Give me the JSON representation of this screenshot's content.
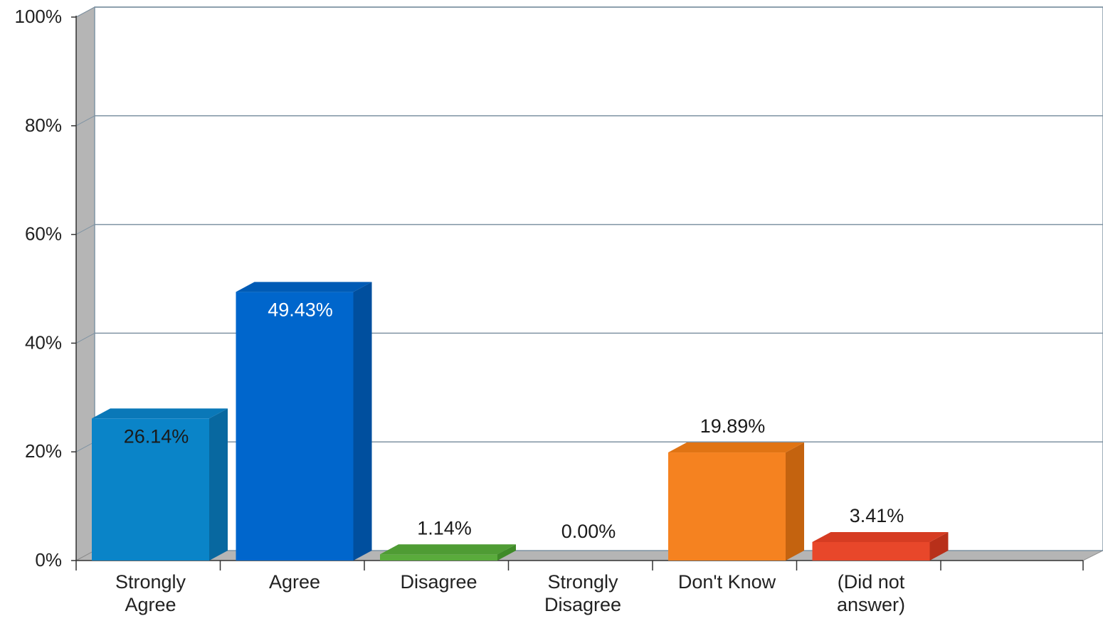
{
  "chart_data": {
    "type": "bar",
    "title": "",
    "xlabel": "",
    "ylabel": "",
    "ylim": [
      0,
      100
    ],
    "yticks": [
      {
        "value": 0,
        "label": "0%"
      },
      {
        "value": 20,
        "label": "20%"
      },
      {
        "value": 40,
        "label": "40%"
      },
      {
        "value": 60,
        "label": "60%"
      },
      {
        "value": 80,
        "label": "80%"
      },
      {
        "value": 100,
        "label": "100%"
      }
    ],
    "categories": [
      [
        "Strongly",
        "Agree"
      ],
      [
        "Agree"
      ],
      [
        "Disagree"
      ],
      [
        "Strongly",
        "Disagree"
      ],
      [
        "Don't Know"
      ],
      [
        "(Did not",
        "answer)"
      ]
    ],
    "values": [
      26.14,
      49.43,
      1.14,
      0.0,
      19.89,
      3.41
    ],
    "value_labels": [
      "26.14%",
      "49.43%",
      "1.14%",
      "0.00%",
      "19.89%",
      "3.41%"
    ],
    "label_inside": [
      true,
      true,
      false,
      false,
      false,
      false
    ],
    "label_colors": [
      "#1a1a1a",
      "#ffffff",
      "#1a1a1a",
      "#1a1a1a",
      "#1a1a1a",
      "#1a1a1a"
    ],
    "colors": [
      {
        "front": "#0a84c8",
        "side": "#0868a0",
        "top": "#0a78b8"
      },
      {
        "front": "#0066cc",
        "side": "#004f9e",
        "top": "#005bb5"
      },
      {
        "front": "#5aab3c",
        "side": "#3f8a28",
        "top": "#4f9c34"
      },
      {
        "front": "#8a8a8a",
        "side": "#6a6a6a",
        "top": "#7a7a7a"
      },
      {
        "front": "#f58220",
        "side": "#c4630f",
        "top": "#e07414"
      },
      {
        "front": "#e8472a",
        "side": "#b8301a",
        "top": "#d63c22"
      }
    ],
    "grid": true,
    "legend": "none"
  }
}
